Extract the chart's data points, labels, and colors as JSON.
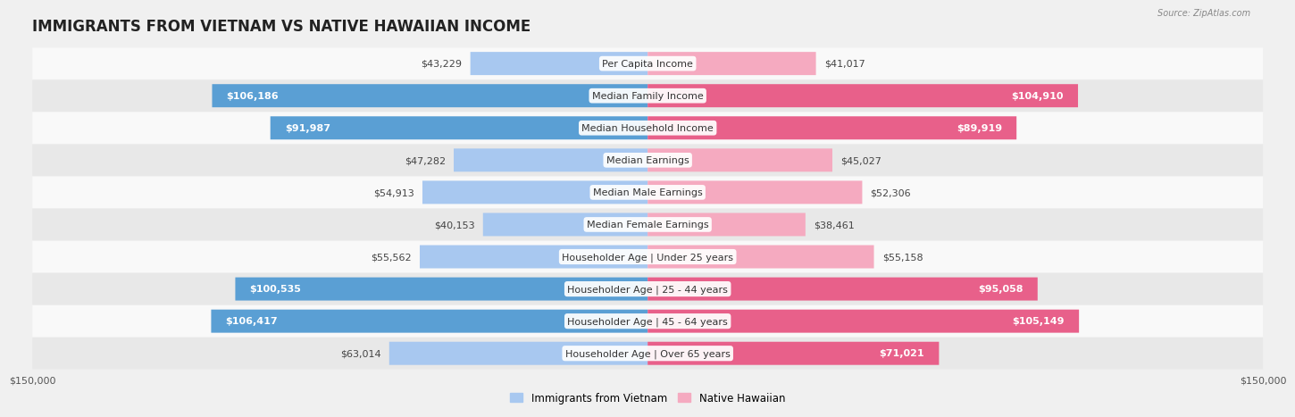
{
  "title": "IMMIGRANTS FROM VIETNAM VS NATIVE HAWAIIAN INCOME",
  "source": "Source: ZipAtlas.com",
  "categories": [
    "Per Capita Income",
    "Median Family Income",
    "Median Household Income",
    "Median Earnings",
    "Median Male Earnings",
    "Median Female Earnings",
    "Householder Age | Under 25 years",
    "Householder Age | 25 - 44 years",
    "Householder Age | 45 - 64 years",
    "Householder Age | Over 65 years"
  ],
  "vietnam_values": [
    43229,
    106186,
    91987,
    47282,
    54913,
    40153,
    55562,
    100535,
    106417,
    63014
  ],
  "hawaiian_values": [
    41017,
    104910,
    89919,
    45027,
    52306,
    38461,
    55158,
    95058,
    105149,
    71021
  ],
  "vietnam_color_light": "#a8c8f0",
  "vietnam_color_dark": "#5a9fd4",
  "hawaiian_color_light": "#f5aac0",
  "hawaiian_color_dark": "#e8608a",
  "vietnam_label": "Immigrants from Vietnam",
  "hawaiian_label": "Native Hawaiian",
  "max_value": 150000,
  "x_tick_label_left": "$150,000",
  "x_tick_label_right": "$150,000",
  "background_color": "#f0f0f0",
  "row_bg_even": "#f9f9f9",
  "row_bg_odd": "#e8e8e8",
  "title_fontsize": 12,
  "label_fontsize": 8,
  "value_fontsize": 8,
  "bar_height": 0.72,
  "dark_threshold": 70000
}
